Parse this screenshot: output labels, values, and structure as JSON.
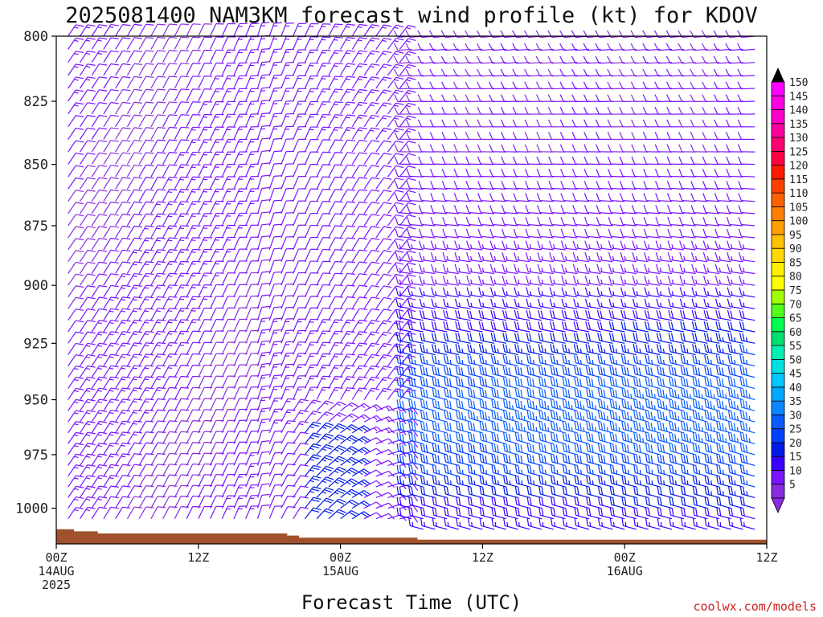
{
  "chart_data": {
    "type": "wind-barb-profile",
    "title": "2025081400 NAM3KM forecast wind profile (kt) for KDOV",
    "xlabel": "Forecast Time (UTC)",
    "credit": "coolwx.com/models",
    "y_axis": {
      "label": "",
      "scale": "log-pressure",
      "range_hpa": [
        1017,
        800
      ],
      "ticks": [
        "800",
        "825",
        "850",
        "875",
        "900",
        "925",
        "950",
        "975",
        "1000"
      ],
      "tick_values": [
        800,
        825,
        850,
        875,
        900,
        925,
        950,
        975,
        1000
      ]
    },
    "x_axis": {
      "range_hours": [
        0,
        60
      ],
      "ticks": [
        {
          "hour": 0,
          "line1": "00Z",
          "line2": "14AUG",
          "line3": "2025"
        },
        {
          "hour": 12,
          "line1": "12Z",
          "line2": "",
          "line3": ""
        },
        {
          "hour": 24,
          "line1": "00Z",
          "line2": "15AUG",
          "line3": ""
        },
        {
          "hour": 36,
          "line1": "12Z",
          "line2": "",
          "line3": ""
        },
        {
          "hour": 48,
          "line1": "00Z",
          "line2": "16AUG",
          "line3": ""
        },
        {
          "hour": 60,
          "line1": "12Z",
          "line2": "",
          "line3": ""
        }
      ]
    },
    "colorbar": {
      "unit": "kt",
      "levels": [
        "5",
        "10",
        "15",
        "20",
        "25",
        "30",
        "35",
        "40",
        "45",
        "50",
        "55",
        "60",
        "65",
        "70",
        "75",
        "80",
        "85",
        "90",
        "95",
        "100",
        "105",
        "110",
        "115",
        "120",
        "125",
        "130",
        "135",
        "140",
        "145",
        "150"
      ],
      "colors": [
        "#8a2be2",
        "#7a14ff",
        "#3a00ff",
        "#0018e8",
        "#0040ff",
        "#0a5cff",
        "#0a84ff",
        "#00a8ff",
        "#00c8ff",
        "#00e0e0",
        "#00f0b4",
        "#00e070",
        "#00ff50",
        "#50ff1a",
        "#a0ff00",
        "#ffff00",
        "#fff000",
        "#ffd800",
        "#ffc000",
        "#ffa000",
        "#ff8000",
        "#ff6000",
        "#ff4000",
        "#ff1a00",
        "#ff0040",
        "#ff0070",
        "#ff00a0",
        "#ff00c8",
        "#ff00e0",
        "#ff00ff"
      ]
    },
    "surface_pressure_hpa": [
      1010,
      1010,
      1011,
      1011,
      1012,
      1012,
      1012,
      1012,
      1012,
      1012,
      1012,
      1012,
      1012,
      1012,
      1012,
      1012,
      1012,
      1012,
      1012,
      1012,
      1013,
      1014,
      1014,
      1014,
      1014,
      1014,
      1014,
      1014,
      1014,
      1014,
      1014,
      1015,
      1015,
      1015,
      1015,
      1015,
      1015,
      1015,
      1015,
      1015,
      1015,
      1015,
      1015,
      1015,
      1015,
      1015,
      1015,
      1015,
      1015,
      1015,
      1015,
      1015,
      1015,
      1015,
      1015,
      1015,
      1015,
      1015,
      1015,
      1015,
      1015
    ],
    "profile_levels_hpa": [
      800,
      805,
      810,
      815,
      820,
      825,
      830,
      835,
      840,
      845,
      850,
      855,
      860,
      865,
      870,
      875,
      880,
      885,
      890,
      895,
      900,
      905,
      910,
      915,
      920,
      925,
      930,
      935,
      940,
      945,
      950,
      955,
      960,
      965,
      970,
      975,
      980,
      985,
      990,
      995,
      1000,
      1005,
      1010
    ],
    "wind_regimes": [
      {
        "hours": [
          0,
          16
        ],
        "direction_deg": 35,
        "speed_kt": [
          10,
          15
        ]
      },
      {
        "hours": [
          17,
          29
        ],
        "direction_deg": 15,
        "speed_kt": [
          10,
          15
        ]
      },
      {
        "hours": [
          30,
          60
        ],
        "direction_deg": 280,
        "speed_kt": [
          10,
          35
        ],
        "note": "stronger (blue) winds near 900-1000 hPa"
      }
    ]
  }
}
